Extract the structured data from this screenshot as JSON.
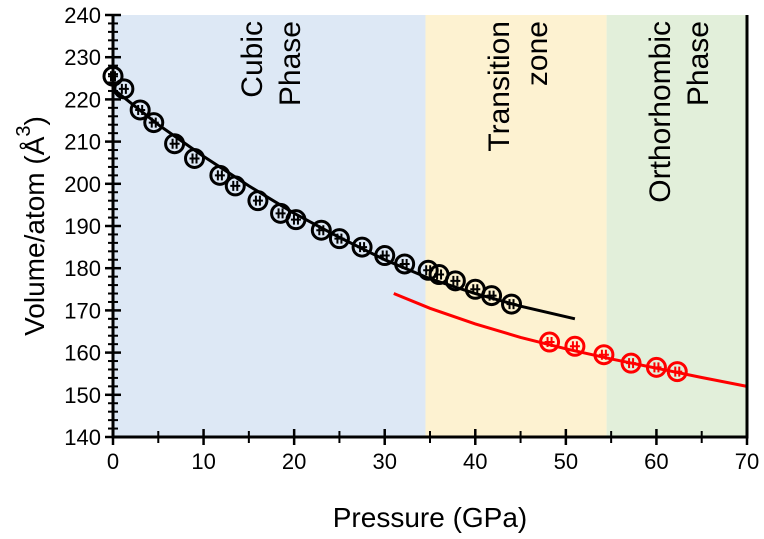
{
  "chart_data": {
    "type": "scatter",
    "xlabel": "Pressure (GPa)",
    "ylabel": "Volume/atom (Å",
    "ylabel_superscript": "3",
    "ylabel_close": ")",
    "xlim": [
      0,
      70
    ],
    "ylim": [
      140,
      240
    ],
    "xticks": [
      "0",
      "10",
      "20",
      "30",
      "40",
      "50",
      "60",
      "70"
    ],
    "yticks": [
      "140",
      "150",
      "160",
      "170",
      "180",
      "190",
      "200",
      "210",
      "220",
      "230",
      "240"
    ],
    "grid": false,
    "regions": [
      {
        "label_lines": [
          "Cubic",
          "Phase"
        ],
        "x_range": [
          0,
          34.5
        ],
        "color": "#dde8f5"
      },
      {
        "label_lines": [
          "Transition",
          "zone"
        ],
        "x_range": [
          34.5,
          54.5
        ],
        "color": "#fdf2d1"
      },
      {
        "label_lines": [
          "Orthorhombic",
          "Phase"
        ],
        "x_range": [
          54.5,
          70
        ],
        "color": "#e2efda"
      }
    ],
    "series": [
      {
        "color": "#000000",
        "points": [
          [
            0,
            225.5
          ],
          [
            1.2,
            222.5
          ],
          [
            3,
            217.5
          ],
          [
            4.5,
            214.5
          ],
          [
            6.8,
            209.5
          ],
          [
            9,
            206
          ],
          [
            11.8,
            202
          ],
          [
            13.5,
            199.5
          ],
          [
            16,
            196
          ],
          [
            18.5,
            193
          ],
          [
            20.2,
            191.5
          ],
          [
            23,
            189
          ],
          [
            25,
            187
          ],
          [
            27.5,
            185
          ],
          [
            30,
            183
          ],
          [
            32.2,
            181
          ],
          [
            34.8,
            179.5
          ],
          [
            36,
            178.5
          ],
          [
            37.8,
            177
          ],
          [
            40,
            175
          ],
          [
            41.8,
            173.5
          ],
          [
            44,
            171.5
          ]
        ],
        "fit": [
          [
            0,
            222.5
          ],
          [
            5,
            214
          ],
          [
            10,
            206.5
          ],
          [
            15,
            199.5
          ],
          [
            20,
            193
          ],
          [
            25,
            187.3
          ],
          [
            30,
            182
          ],
          [
            35,
            177.5
          ],
          [
            40,
            174
          ],
          [
            45,
            171
          ],
          [
            51,
            168
          ]
        ]
      },
      {
        "color": "#ff0000",
        "points": [
          [
            48.2,
            162.5
          ],
          [
            51,
            161.5
          ],
          [
            54.2,
            159.5
          ],
          [
            57.2,
            157.5
          ],
          [
            60,
            156.5
          ],
          [
            62.3,
            155.5
          ]
        ],
        "fit": [
          [
            31,
            174
          ],
          [
            35,
            170.5
          ],
          [
            40,
            166.8
          ],
          [
            45,
            163.6
          ],
          [
            50,
            160.9
          ],
          [
            55,
            158.5
          ],
          [
            60,
            156.3
          ],
          [
            65,
            154.1
          ],
          [
            70,
            152
          ]
        ]
      }
    ]
  }
}
